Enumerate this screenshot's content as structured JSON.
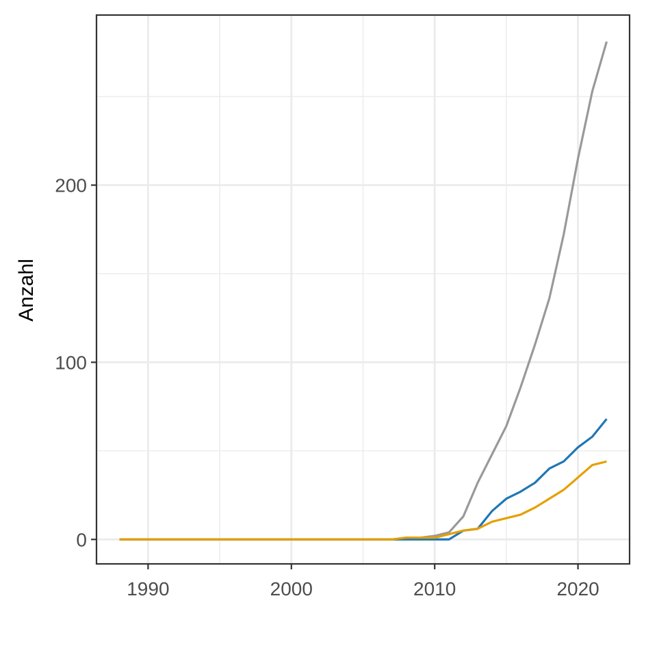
{
  "chart_data": {
    "type": "line",
    "title": "",
    "xlabel": "",
    "ylabel": "Anzahl",
    "xlim": [
      1986.4,
      2023.6
    ],
    "ylim": [
      -13.8,
      296
    ],
    "x_ticks": [
      1990,
      2000,
      2010,
      2020
    ],
    "x_tick_labels": [
      "1990",
      "2000",
      "2010",
      "2020"
    ],
    "x_minor_ticks": [
      1995,
      2005,
      2015
    ],
    "y_ticks": [
      0,
      100,
      200
    ],
    "y_tick_labels": [
      "0",
      "100",
      "200"
    ],
    "y_minor_ticks": [
      50,
      150,
      250
    ],
    "grid": true,
    "legend": "none",
    "x": [
      1988,
      1989,
      1990,
      1991,
      1992,
      1993,
      1994,
      1995,
      1996,
      1997,
      1998,
      1999,
      2000,
      2001,
      2002,
      2003,
      2004,
      2005,
      2006,
      2007,
      2008,
      2009,
      2010,
      2011,
      2012,
      2013,
      2014,
      2015,
      2016,
      2017,
      2018,
      2019,
      2020,
      2021,
      2022
    ],
    "series": [
      {
        "color": "#999999",
        "values": [
          0,
          0,
          0,
          0,
          0,
          0,
          0,
          0,
          0,
          0,
          0,
          0,
          0,
          0,
          0,
          0,
          0,
          0,
          0,
          0,
          1,
          1,
          2,
          4,
          13,
          32,
          48,
          64,
          86,
          110,
          136,
          172,
          215,
          253,
          281
        ]
      },
      {
        "color": "#1f77b4",
        "values": [
          0,
          0,
          0,
          0,
          0,
          0,
          0,
          0,
          0,
          0,
          0,
          0,
          0,
          0,
          0,
          0,
          0,
          0,
          0,
          0,
          0,
          0,
          0,
          0,
          5,
          6,
          16,
          23,
          27,
          32,
          40,
          44,
          52,
          58,
          68
        ]
      },
      {
        "color": "#e69f00",
        "values": [
          0,
          0,
          0,
          0,
          0,
          0,
          0,
          0,
          0,
          0,
          0,
          0,
          0,
          0,
          0,
          0,
          0,
          0,
          0,
          0,
          1,
          1,
          1,
          3,
          5,
          6,
          10,
          12,
          14,
          18,
          23,
          28,
          35,
          42,
          44
        ]
      }
    ]
  }
}
